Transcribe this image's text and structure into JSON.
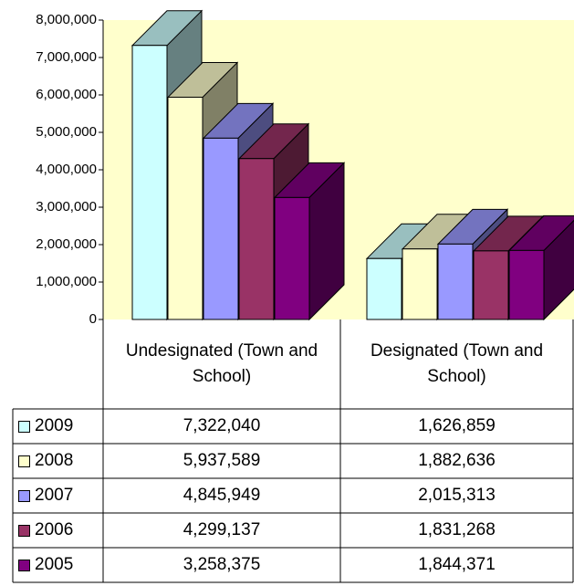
{
  "chart_data": {
    "type": "bar3d",
    "categories": [
      "Undesignated (Town and School)",
      "Designated (Town and School)"
    ],
    "series": [
      {
        "name": "2009",
        "color": "#ccffff",
        "values": [
          7322040,
          1626859
        ],
        "value_labels": [
          "7,322,040",
          "1,626,859"
        ]
      },
      {
        "name": "2008",
        "color": "#ffffcc",
        "values": [
          5937589,
          1882636
        ],
        "value_labels": [
          "5,937,589",
          "1,882,636"
        ]
      },
      {
        "name": "2007",
        "color": "#9999ff",
        "values": [
          4845949,
          2015313
        ],
        "value_labels": [
          "4,845,949",
          "2,015,313"
        ]
      },
      {
        "name": "2006",
        "color": "#993366",
        "values": [
          4299137,
          1831268
        ],
        "value_labels": [
          "4,299,137",
          "1,831,268"
        ]
      },
      {
        "name": "2005",
        "color": "#800080",
        "values": [
          3258375,
          1844371
        ],
        "value_labels": [
          "3,258,375",
          "1,844,371"
        ]
      }
    ],
    "ylim": [
      0,
      8000000
    ],
    "yticks": [
      0,
      {
        "value": 1000000,
        "label": "1,000,000"
      },
      {
        "value": 2000000,
        "label": "2,000,000"
      },
      {
        "value": 3000000,
        "label": "3,000,000"
      },
      {
        "value": 4000000,
        "label": "4,000,000"
      },
      {
        "value": 5000000,
        "label": "5,000,000"
      },
      {
        "value": 6000000,
        "label": "6,000,000"
      },
      {
        "value": 7000000,
        "label": "7,000,000"
      },
      {
        "value": 8000000,
        "label": "8,000,000"
      }
    ],
    "plot_background": "#ffffcc"
  }
}
